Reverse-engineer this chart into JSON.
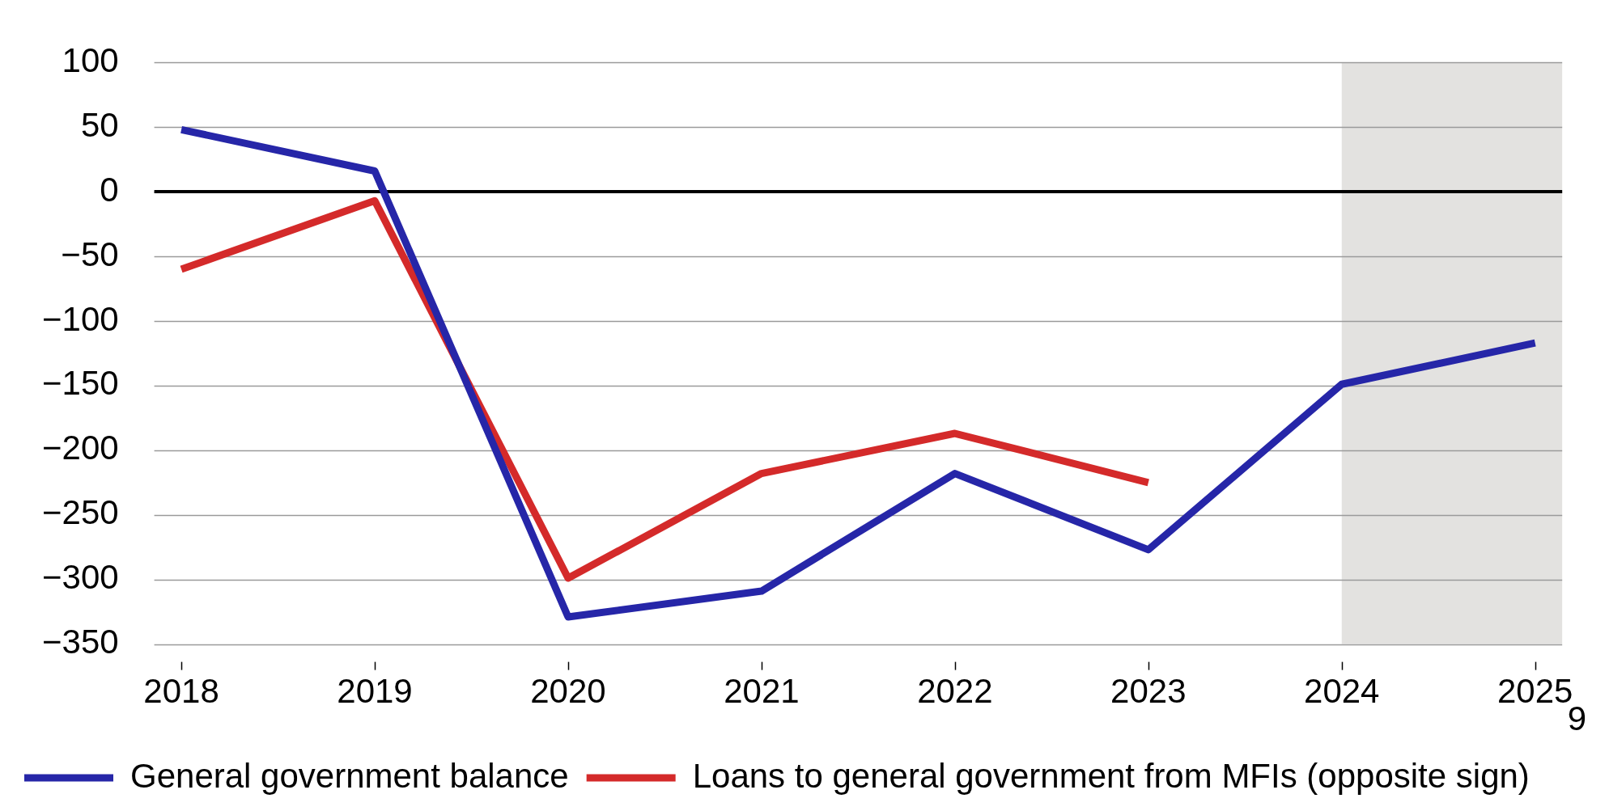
{
  "chart_data": {
    "type": "line",
    "x": [
      2018,
      2019,
      2020,
      2021,
      2022,
      2023,
      2024,
      2025
    ],
    "series": [
      {
        "name": "General government balance",
        "color": "#2626a8",
        "values": [
          48,
          16,
          -329,
          -309,
          -218,
          -277,
          -149,
          -117
        ]
      },
      {
        "name": "Loans to general government from MFIs (opposite sign)",
        "color": "#d42a2a",
        "values": [
          -60,
          -7,
          -299,
          -218,
          -187,
          -225,
          null,
          null
        ]
      }
    ],
    "xlim": [
      2017.86,
      2025.14
    ],
    "xticks": [
      2018,
      2019,
      2020,
      2021,
      2022,
      2023,
      2024,
      2025
    ],
    "ylim": [
      -350,
      100
    ],
    "yticks": [
      100,
      50,
      0,
      {
        "value": -50,
        "label": "−50"
      },
      {
        "value": -100,
        "label": "−100"
      },
      {
        "value": -150,
        "label": "−150"
      },
      {
        "value": -200,
        "label": "−200"
      },
      {
        "value": -250,
        "label": "−250"
      },
      {
        "value": -300,
        "label": "−300"
      },
      {
        "value": -350,
        "label": "−350"
      }
    ],
    "grid": "y",
    "legend": "bottom",
    "line_style": "solid",
    "marker": "none",
    "ref_lines": [
      {
        "axis": "y",
        "value": 0,
        "color": "#000000"
      }
    ],
    "bands": [
      {
        "axis": "x",
        "from": 2024,
        "to": 2025.14,
        "color": "#e3e2e0"
      }
    ],
    "annotations": [
      "9"
    ]
  }
}
